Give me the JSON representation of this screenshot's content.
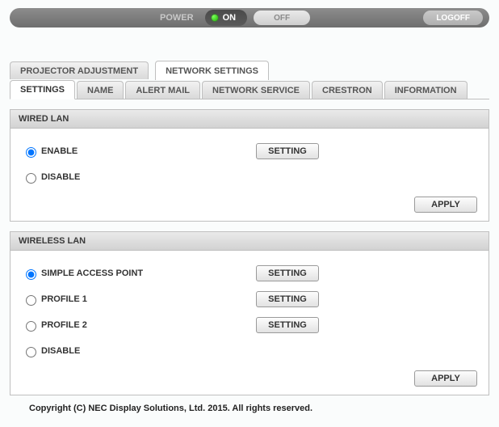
{
  "topbar": {
    "power_label": "POWER",
    "on_label": "ON",
    "off_label": "OFF",
    "logoff_label": "LOGOFF"
  },
  "main_tabs": {
    "projector_adjustment": "PROJECTOR ADJUSTMENT",
    "network_settings": "NETWORK SETTINGS",
    "active_index": 1
  },
  "sub_tabs": {
    "settings": "SETTINGS",
    "name": "NAME",
    "alert_mail": "ALERT MAIL",
    "network_service": "NETWORK SERVICE",
    "crestron": "CRESTRON",
    "information": "INFORMATION",
    "active_index": 0
  },
  "wired_lan": {
    "title": "WIRED LAN",
    "enable": "ENABLE",
    "disable": "DISABLE",
    "setting_btn": "SETTING",
    "apply_btn": "APPLY",
    "selected": "enable"
  },
  "wireless_lan": {
    "title": "WIRELESS LAN",
    "simple_ap": "SIMPLE ACCESS POINT",
    "profile1": "PROFILE 1",
    "profile2": "PROFILE 2",
    "disable": "DISABLE",
    "setting_btn": "SETTING",
    "apply_btn": "APPLY",
    "selected": "simple_ap"
  },
  "footer": "Copyright (C) NEC Display Solutions, Ltd. 2015. All rights reserved.",
  "colors": {
    "topbar_bg": "#777777",
    "panel_border": "#bfbfbf",
    "power_led": "#1db400"
  }
}
